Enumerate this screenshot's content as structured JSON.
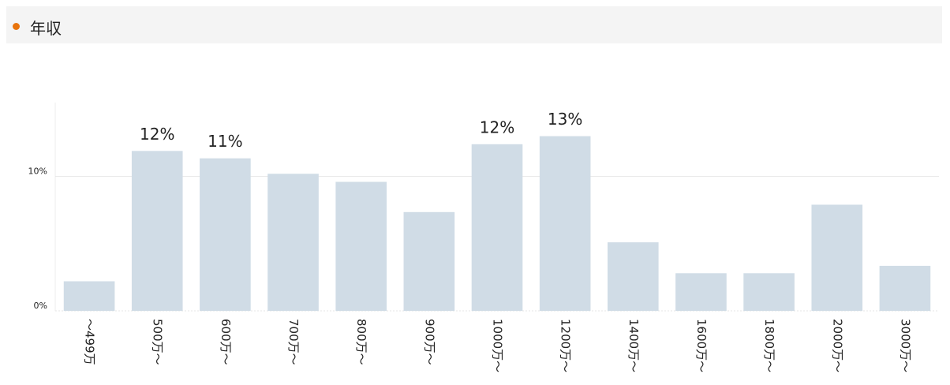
{
  "chart_data": {
    "type": "bar",
    "title": "年収",
    "categories": [
      "～499万",
      "500万～",
      "600万～",
      "700万～",
      "800万～",
      "900万～",
      "1000万～",
      "1200万～",
      "1400万～",
      "1600万～",
      "1800万～",
      "2000万～",
      "3000万～"
    ],
    "values": [
      2.2,
      11.9,
      11.35,
      10.2,
      9.6,
      7.35,
      12.4,
      13.0,
      5.1,
      2.8,
      2.8,
      7.9,
      3.35
    ],
    "value_labels": [
      null,
      "12%",
      "11%",
      null,
      null,
      null,
      "12%",
      "13%",
      null,
      null,
      null,
      null,
      null
    ],
    "color": "#d0dce6",
    "ylim": [
      0,
      15.5
    ],
    "yticks": [
      {
        "value": 0,
        "label": "0%"
      },
      {
        "value": 10,
        "label": "10%"
      }
    ],
    "grid": true
  }
}
